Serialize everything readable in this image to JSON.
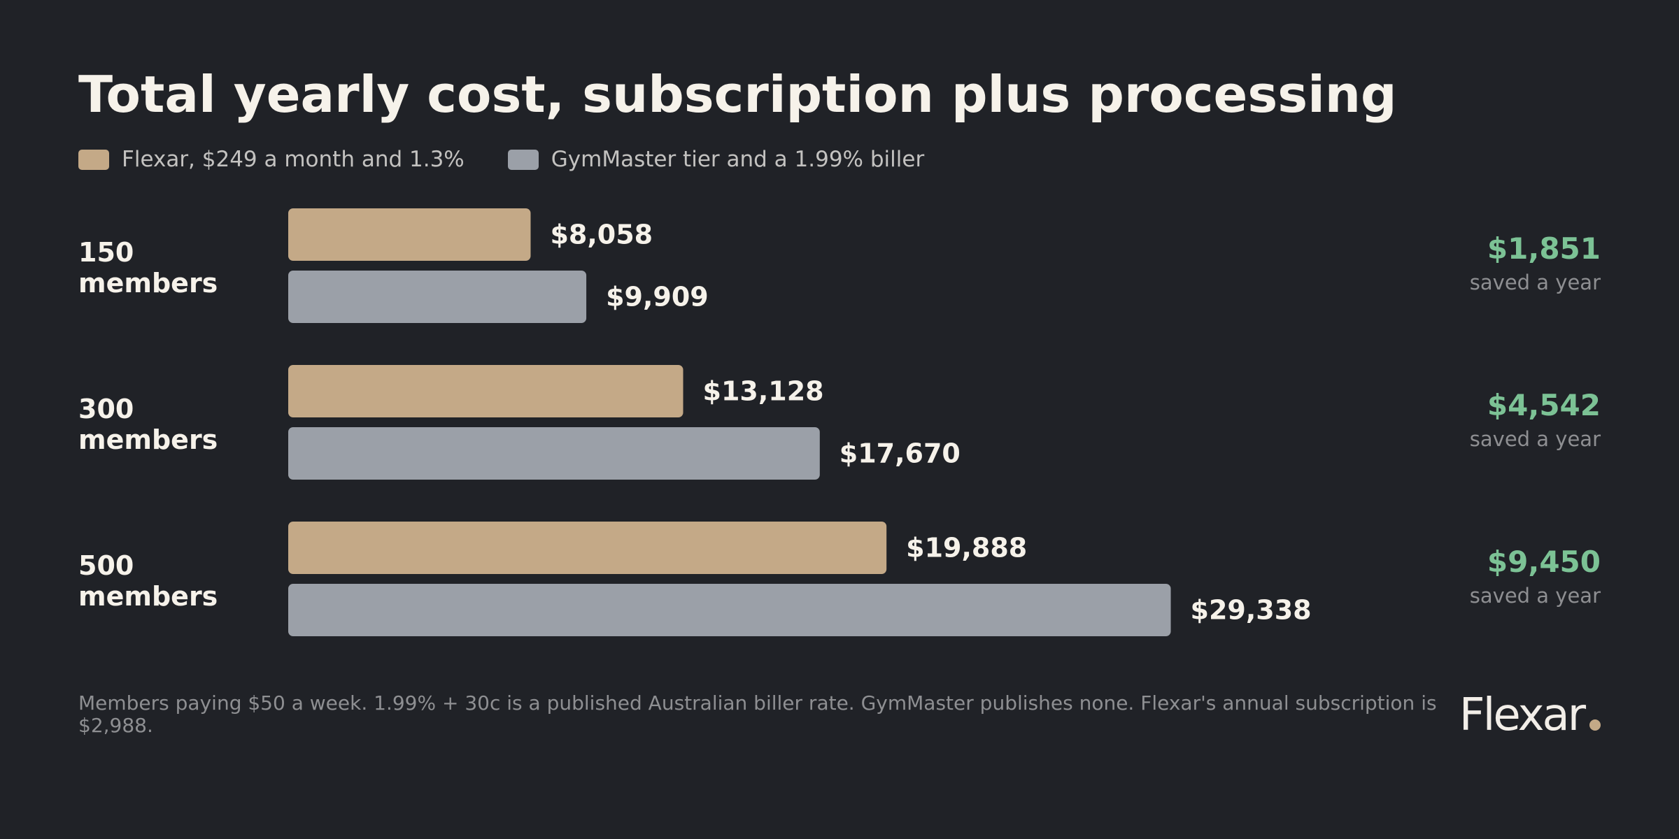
{
  "colors": {
    "background": "#202227",
    "flexar": "#c4a987",
    "gymmaster": "#9ba0a8",
    "savings": "#7cc295",
    "text": "#f6f2ea",
    "muted": "#8e8f92"
  },
  "brand": {
    "name": "Flexar"
  },
  "footnote": "Members paying $50 a week. 1.99% + 30c is a published Australian biller rate. GymMaster publishes none. Flexar's annual subscription is $2,988.",
  "chart_data": {
    "type": "bar",
    "orientation": "horizontal",
    "title": "Total yearly cost, subscription plus processing",
    "legend_position": "top-left",
    "grid": false,
    "categories": [
      "150 members",
      "300 members",
      "500 members"
    ],
    "series": [
      {
        "name": "Flexar, $249 a month and 1.3%",
        "values": [
          8058,
          13128,
          19888
        ],
        "labels": [
          "$8,058",
          "$13,128",
          "$19,888"
        ]
      },
      {
        "name": "GymMaster tier and a 1.99% biller",
        "values": [
          9909,
          17670,
          29338
        ],
        "labels": [
          "$9,909",
          "$17,670",
          "$29,338"
        ]
      }
    ],
    "savings": [
      {
        "amount": "$1,851",
        "caption": "saved a year"
      },
      {
        "amount": "$4,542",
        "caption": "saved a year"
      },
      {
        "amount": "$9,450",
        "caption": "saved a year"
      }
    ],
    "xlim": [
      0,
      37000
    ]
  }
}
